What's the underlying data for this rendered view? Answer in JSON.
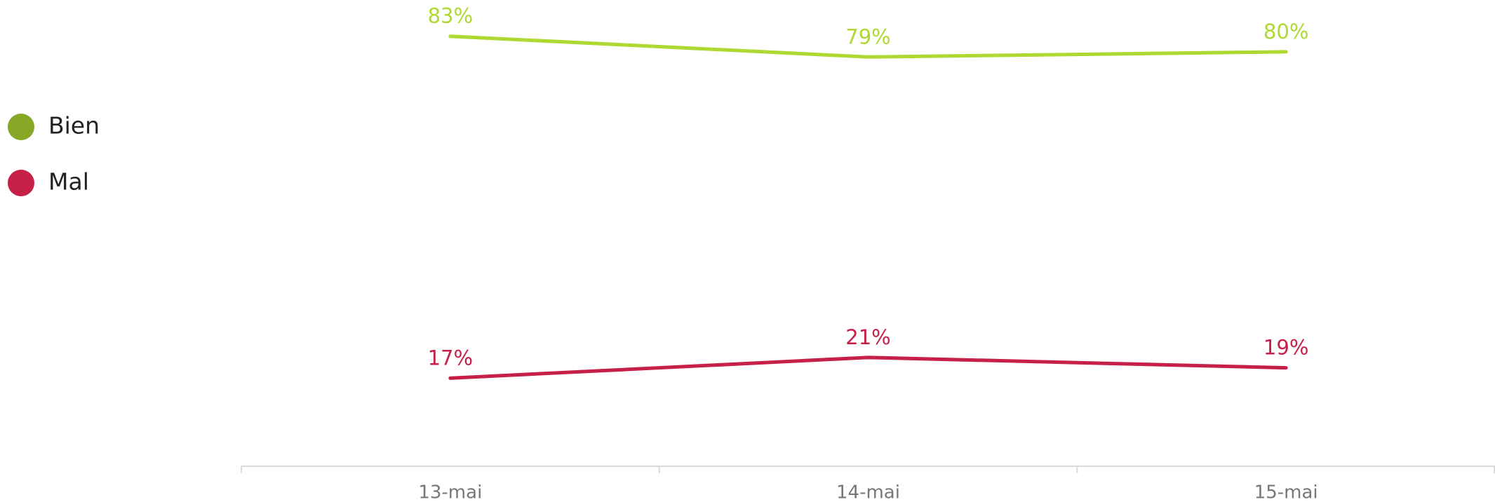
{
  "chart_data": {
    "type": "line",
    "categories": [
      "13-mai",
      "14-mai",
      "15-mai"
    ],
    "series": [
      {
        "name": "Bien",
        "color": "#add932",
        "legend_color": "#86a826",
        "values": [
          83,
          79,
          80
        ],
        "value_labels": [
          "83%",
          "79%",
          "80%"
        ]
      },
      {
        "name": "Mal",
        "color": "#c61f48",
        "legend_color": "#c61f48",
        "values": [
          17,
          21,
          19
        ],
        "value_labels": [
          "17%",
          "21%",
          "19%"
        ]
      }
    ],
    "ylim": [
      0,
      90
    ]
  }
}
